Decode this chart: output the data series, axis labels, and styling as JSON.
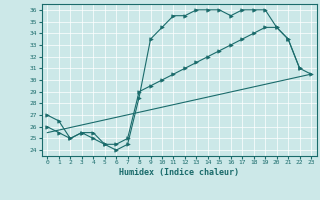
{
  "xlabel": "Humidex (Indice chaleur)",
  "xlim": [
    -0.5,
    23.5
  ],
  "ylim": [
    23.5,
    36.5
  ],
  "yticks": [
    24,
    25,
    26,
    27,
    28,
    29,
    30,
    31,
    32,
    33,
    34,
    35,
    36
  ],
  "xticks": [
    0,
    1,
    2,
    3,
    4,
    5,
    6,
    7,
    8,
    9,
    10,
    11,
    12,
    13,
    14,
    15,
    16,
    17,
    18,
    19,
    20,
    21,
    22,
    23
  ],
  "bg_color": "#cce8e8",
  "line_color": "#1a6b6b",
  "series": [
    {
      "x": [
        0,
        1,
        2,
        3,
        4,
        5,
        6,
        7,
        8,
        9,
        10,
        11,
        12,
        13,
        14,
        15,
        16,
        17,
        18,
        19,
        20,
        21,
        22
      ],
      "y": [
        27.0,
        26.5,
        25.0,
        25.5,
        25.5,
        24.5,
        24.0,
        24.5,
        28.5,
        33.5,
        34.5,
        35.5,
        35.5,
        36.0,
        36.0,
        36.0,
        35.5,
        36.0,
        36.0,
        36.0,
        34.5,
        33.5,
        31.0
      ],
      "marker": ">"
    },
    {
      "x": [
        0,
        1,
        2,
        3,
        4,
        5,
        6,
        7,
        8,
        9,
        10,
        11,
        12,
        13,
        14,
        15,
        16,
        17,
        18,
        19,
        20,
        21,
        22,
        23
      ],
      "y": [
        26.0,
        25.5,
        25.0,
        25.5,
        25.0,
        24.5,
        24.5,
        25.0,
        29.0,
        29.5,
        30.0,
        30.5,
        31.0,
        31.5,
        32.0,
        32.5,
        33.0,
        33.5,
        34.0,
        34.5,
        34.5,
        33.5,
        31.0,
        30.5
      ],
      "marker": ">"
    },
    {
      "x": [
        0,
        23
      ],
      "y": [
        25.5,
        30.5
      ],
      "marker": null
    }
  ]
}
